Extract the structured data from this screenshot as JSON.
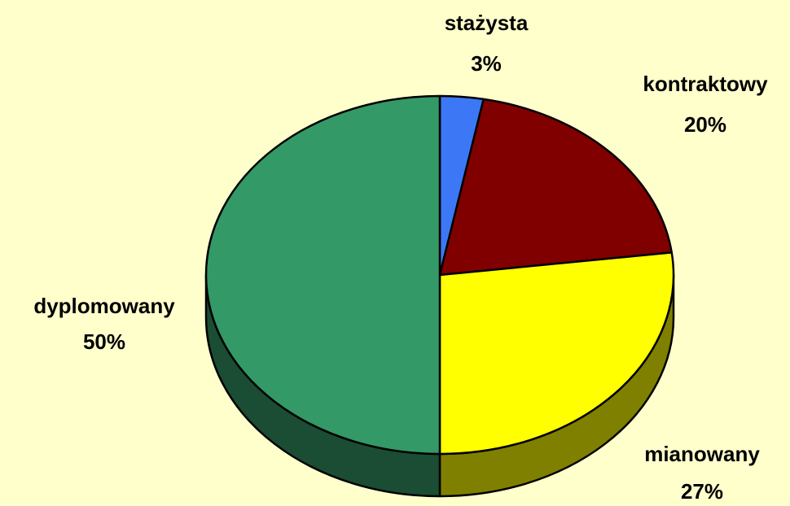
{
  "chart_data": {
    "type": "pie",
    "categories": [
      "stażysta",
      "kontraktowy",
      "mianowany",
      "dyplomowany"
    ],
    "values": [
      3,
      20,
      27,
      50
    ],
    "value_labels": [
      "3%",
      "20%",
      "27%",
      "50%"
    ],
    "colors": [
      "#3c78f5",
      "#800000",
      "#ffff00",
      "#339966"
    ]
  }
}
